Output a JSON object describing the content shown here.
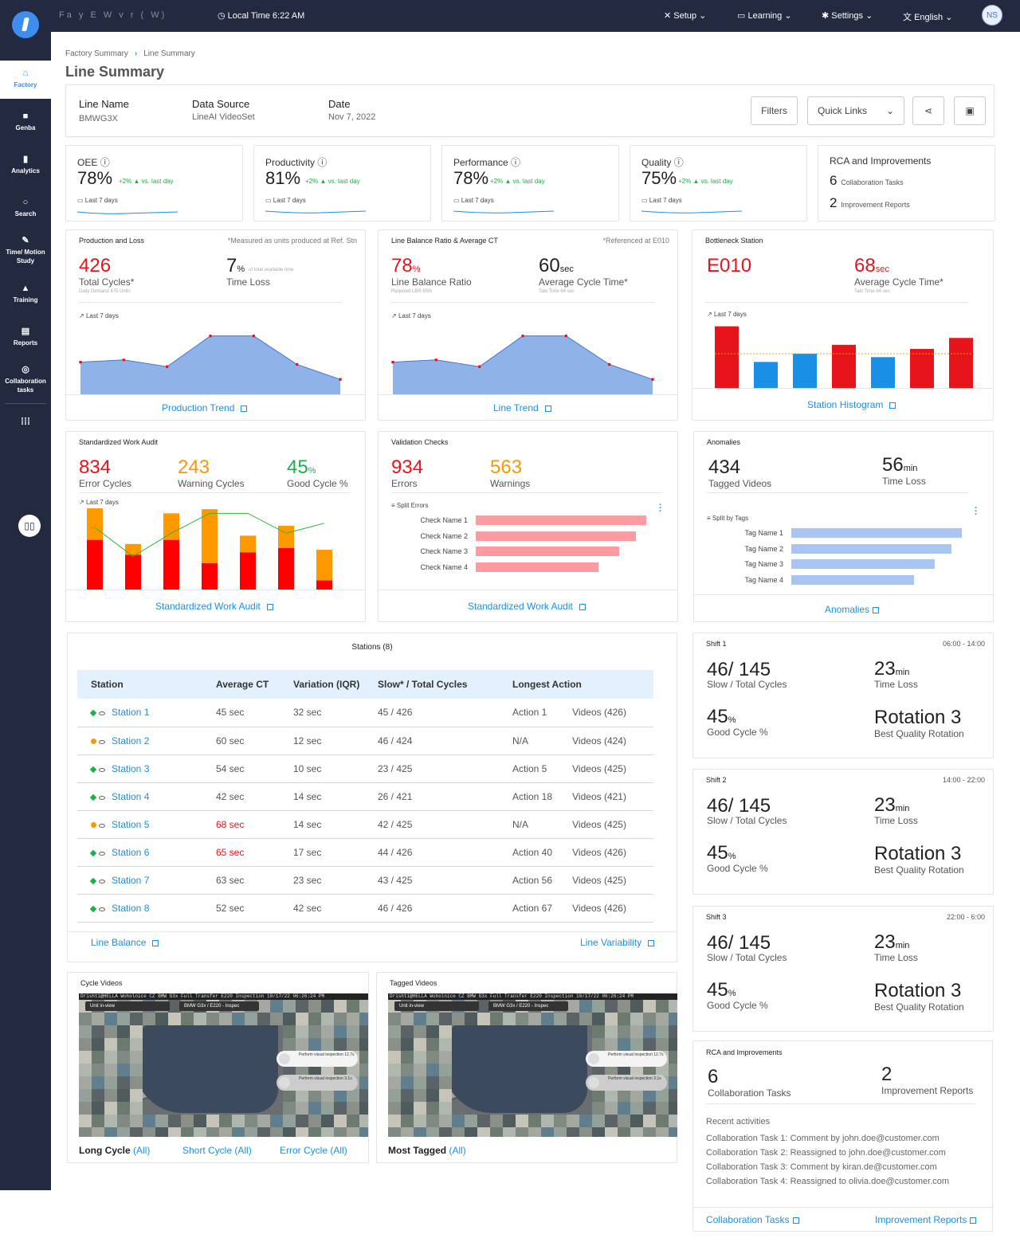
{
  "topbar": {
    "blurred_text": "Fa y  E  W  v  r   (  W)",
    "local_time": "Local Time 6:22 AM",
    "setup": "Setup",
    "learning": "Learning",
    "settings": "Settings",
    "language": "English",
    "avatar": "NS"
  },
  "sidebar": [
    {
      "label": "Factory",
      "icon": "home-icon"
    },
    {
      "label": "Genba",
      "icon": "video-camera-icon"
    },
    {
      "label": "Analytics",
      "icon": "bar-chart-icon"
    },
    {
      "label": "Search",
      "icon": "search-icon"
    },
    {
      "label": "Time/ Motion Study",
      "icon": "edit-icon"
    },
    {
      "label": "Training",
      "icon": "graduation-cap-icon"
    },
    {
      "label": "Reports",
      "icon": "document-icon"
    },
    {
      "label": "Collaboration tasks",
      "icon": "collaboration-icon"
    }
  ],
  "breadcrumb": {
    "parent": "Factory  Summary",
    "current": "Line Summary"
  },
  "page_title": "Line Summary",
  "header": {
    "line_name_label": "Line Name",
    "line_name": "BMWG3X",
    "data_source_label": "Data Source",
    "data_source": "LineAI VideoSet",
    "date_label": "Date",
    "date": "Nov 7, 2022",
    "filters": "Filters",
    "quick_links": "Quick Links"
  },
  "kpis": [
    {
      "label": "OEE",
      "value": "78%",
      "delta": "+2% ▲ vs. last day",
      "last": "Last 7 days"
    },
    {
      "label": "Productivity",
      "value": "81%",
      "delta": "+2% ▲ vs. last day",
      "last": "Last 7 days"
    },
    {
      "label": "Performance",
      "value": "78%",
      "delta": "+2% ▲ vs. last day",
      "last": "Last 7 days"
    },
    {
      "label": "Quality",
      "value": "75%",
      "delta": "+2% ▲ vs. last day",
      "last": "Last 7 days"
    }
  ],
  "rca_top": {
    "title": "RCA and Improvements",
    "tasks_n": "6",
    "tasks_l": "Collaboration Tasks",
    "reports_n": "2",
    "reports_l": "Improvement Reports"
  },
  "production": {
    "title": "Production and Loss",
    "note": "*Measured as units produced at Ref. Stn",
    "cycles": "426",
    "cycles_label": "Total Cycles*",
    "cycles_sub": "Daily Demand 475 Units",
    "loss": "7",
    "loss_unit": "%",
    "loss_tiny": "of total available time",
    "loss_label": "Time Loss",
    "last": "Last 7 days",
    "link": "Production Trend",
    "series": [
      43,
      46,
      37,
      78,
      78,
      40,
      20
    ]
  },
  "linebalance": {
    "title": "Line Balance Ratio & Average CT",
    "note": "*Referenced at E010",
    "ratio": "78",
    "ratio_unit": "%",
    "ratio_label": "Line Balance Ratio",
    "ratio_sub": "Required LBR 85%",
    "ct": "60",
    "ct_unit": "sec",
    "ct_label": "Average Cycle Time*",
    "ct_sub": "Takt Time 64 sec",
    "last": "Last 7 days",
    "link": "Line Trend",
    "series": [
      43,
      46,
      37,
      78,
      78,
      40,
      20
    ]
  },
  "bottleneck": {
    "title": "Bottleneck Station",
    "station": "E010",
    "ct": "68",
    "ct_unit": "sec",
    "ct_label": "Average Cycle Time*",
    "ct_sub": "Takt Time 64 sec",
    "last": "Last 7 days",
    "link": "Station Histogram",
    "bars": [
      {
        "v": 90,
        "c": "#e8141c"
      },
      {
        "v": 38,
        "c": "#1a8fe6"
      },
      {
        "v": 50,
        "c": "#1a8fe6"
      },
      {
        "v": 63,
        "c": "#e8141c"
      },
      {
        "v": 45,
        "c": "#1a8fe6"
      },
      {
        "v": 57,
        "c": "#e8141c"
      },
      {
        "v": 73,
        "c": "#e8141c"
      }
    ],
    "takt": 50
  },
  "swa": {
    "title": "Standardized Work Audit",
    "errors": "834",
    "errors_label": "Error Cycles",
    "warnings": "243",
    "warnings_label": "Warning Cycles",
    "good": "45",
    "good_unit": "%",
    "good_label": "Good Cycle %",
    "last": "Last 7 days",
    "link": "Standardized Work Audit",
    "bars": [
      {
        "red": 60,
        "orange": 38
      },
      {
        "red": 42,
        "orange": 13
      },
      {
        "red": 60,
        "orange": 32
      },
      {
        "red": 32,
        "orange": 65
      },
      {
        "red": 45,
        "orange": 20
      },
      {
        "red": 50,
        "orange": 27
      },
      {
        "red": 11,
        "orange": 37
      }
    ],
    "line": [
      75,
      40,
      68,
      92,
      92,
      68,
      80
    ]
  },
  "validation": {
    "title": "Validation Checks",
    "errors": "934",
    "errors_label": "Errors",
    "warnings": "563",
    "warnings_label": "Warnings",
    "split": "Split Errors",
    "checks": [
      {
        "name": "Check Name 1",
        "v": 100
      },
      {
        "name": "Check Name 2",
        "v": 94
      },
      {
        "name": "Check Name 3",
        "v": 84
      },
      {
        "name": "Check Name 4",
        "v": 72
      }
    ],
    "link": "Standardized Work Audit"
  },
  "anomalies": {
    "title": "Anomalies",
    "tagged": "434",
    "tagged_label": "Tagged Videos",
    "loss": "56",
    "loss_unit": "min",
    "loss_label": "Time Loss",
    "split": "Split by Tags",
    "tags": [
      {
        "name": "Tag Name 1",
        "v": 100
      },
      {
        "name": "Tag Name 2",
        "v": 94
      },
      {
        "name": "Tag Name 3",
        "v": 84
      },
      {
        "name": "Tag Name 4",
        "v": 72
      }
    ],
    "link": "Anomalies"
  },
  "stations": {
    "title": "Stations (8)",
    "headers": [
      "Station",
      "Average CT",
      "Variation (IQR)",
      "Slow* / Total Cycles",
      "Longest Action"
    ],
    "rows": [
      {
        "name": "Station 1",
        "status": "green",
        "ct": "45 sec",
        "ct_red": false,
        "iqr": "32 sec",
        "slow": "45 / 426",
        "action": "Action 1",
        "videos": "Videos (426)"
      },
      {
        "name": "Station 2",
        "status": "orange",
        "ct": "60 sec",
        "ct_red": false,
        "iqr": "12 sec",
        "slow": "46 / 424",
        "action": "N/A",
        "videos": "Videos (424)"
      },
      {
        "name": "Station 3",
        "status": "green",
        "ct": "54 sec",
        "ct_red": false,
        "iqr": "10 sec",
        "slow": "23 / 425",
        "action": "Action 5",
        "videos": "Videos (425)"
      },
      {
        "name": "Station 4",
        "status": "green",
        "ct": "42 sec",
        "ct_red": false,
        "iqr": "14 sec",
        "slow": "26 / 421",
        "action": "Action 18",
        "videos": "Videos (421)"
      },
      {
        "name": "Station 5",
        "status": "orange",
        "ct": "68 sec",
        "ct_red": true,
        "iqr": "14 sec",
        "slow": "42 / 425",
        "action": "N/A",
        "videos": "Videos (425)"
      },
      {
        "name": "Station 6",
        "status": "green",
        "ct": "65 sec",
        "ct_red": true,
        "iqr": "17 sec",
        "slow": "44 / 426",
        "action": "Action 40",
        "videos": "Videos (426)"
      },
      {
        "name": "Station 7",
        "status": "green",
        "ct": "63 sec",
        "ct_red": false,
        "iqr": "23 sec",
        "slow": "43 / 425",
        "action": "Action 56",
        "videos": "Videos (425)"
      },
      {
        "name": "Station 8",
        "status": "green",
        "ct": "52 sec",
        "ct_red": false,
        "iqr": "42 sec",
        "slow": "46 / 426",
        "action": "Action 67",
        "videos": "Videos (426)"
      }
    ],
    "link_balance": "Line Balance",
    "link_variability": "Line Variability"
  },
  "shifts": [
    {
      "title": "Shift 1",
      "time": "06:00 - 14:00",
      "slow": "46/ 145",
      "slow_label": "Slow / Total Cycles",
      "loss": "23",
      "loss_unit": "min",
      "loss_label": "Time Loss",
      "good": "45",
      "good_unit": "%",
      "good_label": "Good Cycle %",
      "rotation": "Rotation 3",
      "rotation_label": "Best Quality Rotation"
    },
    {
      "title": "Shift 2",
      "time": "14:00 - 22:00",
      "slow": "46/ 145",
      "slow_label": "Slow / Total Cycles",
      "loss": "23",
      "loss_unit": "min",
      "loss_label": "Time Loss",
      "good": "45",
      "good_unit": "%",
      "good_label": "Good Cycle %",
      "rotation": "Rotation 3",
      "rotation_label": "Best Quality Rotation"
    },
    {
      "title": "Shift 3",
      "time": "22:00 - 6:00",
      "slow": "46/ 145",
      "slow_label": "Slow / Total Cycles",
      "loss": "23",
      "loss_unit": "min",
      "loss_label": "Time Loss",
      "good": "45",
      "good_unit": "%",
      "good_label": "Good Cycle %",
      "rotation": "Rotation 3",
      "rotation_label": "Best Quality Rotation"
    }
  ],
  "rca": {
    "title": "RCA and Improvements",
    "tasks_n": "6",
    "tasks_l": "Collaboration Tasks",
    "reports_n": "2",
    "reports_l": "Improvement Reports",
    "recent": "Recent activities",
    "activities": [
      "Collaboration Task 1: Comment by john.doe@customer.com",
      "Collaboration Task 2: Reassigned to john.doe@customer.com",
      "Collaboration Task 3: Comment by kiran.de@customer.com",
      "Collaboration Task 4: Reassigned to olivia.doe@customer.com"
    ],
    "link_tasks": "Collaboration Tasks",
    "link_reports": "Improvement Reports"
  },
  "cycle_videos": {
    "title": "Cycle Videos",
    "caption": "Drishti@HELLA Woholnice CZ BMW G3x Full Transfer E220 Inspection 10/17/22 06:26:24 PM",
    "tag1": "Unit in-view",
    "tag2": "BMW G3x / E220 - Inspec",
    "pill1": "Perform visual inspection",
    "pill1_time": "12.7s",
    "pill2": "Perform visual inspection",
    "pill2_time": "3.1s",
    "long_label": "Long Cycle",
    "long_all": "(All)",
    "short_label": "Short  Cycle",
    "short_all": "(All)",
    "error_label": "Error  Cycle",
    "error_all": "(All)"
  },
  "tagged_videos": {
    "title": "Tagged Videos",
    "caption": "Drishti@HELLA Woholnice CZ BMW G3x Full Transfer E220 Inspection 10/17/22 06:26:24 PM",
    "tag1": "Unit in-view",
    "tag2": "BMW G3x / E220 - Inspec",
    "pill1": "Perform visual inspection",
    "pill1_time": "12.7s",
    "pill2": "Perform visual inspection",
    "pill2_time": "3.1s",
    "most_label": "Most Tagged",
    "most_all": "(All)"
  }
}
